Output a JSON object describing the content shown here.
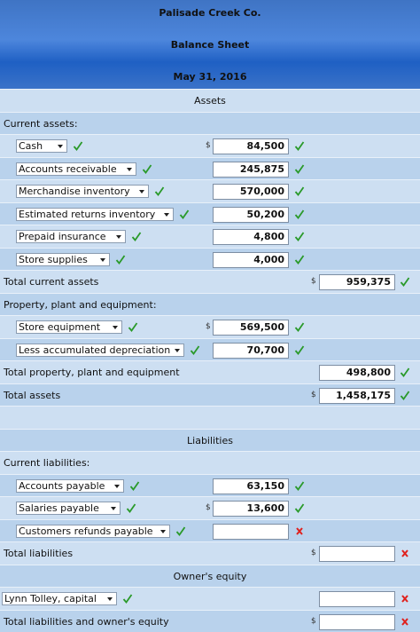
{
  "header": {
    "company": "Palisade Creek Co.",
    "title": "Balance Sheet",
    "date": "May 31, 2016"
  },
  "rows": [
    {
      "label": "Assets"
    },
    {
      "label": "Current assets:"
    },
    {
      "label": "Cash",
      "currency1": "$",
      "amount1": "84,500"
    },
    {
      "label": "Accounts receivable",
      "amount1": "245,875"
    },
    {
      "label": "Merchandise inventory",
      "amount1": "570,000"
    },
    {
      "label": "Estimated returns inventory",
      "amount1": "50,200"
    },
    {
      "label": "Prepaid insurance",
      "amount1": "4,800"
    },
    {
      "label": "Store supplies",
      "amount1": "4,000"
    },
    {
      "label": "Total current assets",
      "currency2": "$",
      "amount2": "959,375"
    },
    {
      "label": "Property, plant and equipment:"
    },
    {
      "label": "Store equipment",
      "currency1": "$",
      "amount1": "569,500"
    },
    {
      "label": "Less accumulated depreciation",
      "amount1": "70,700"
    },
    {
      "label": "Total property, plant and equipment",
      "amount2": "498,800"
    },
    {
      "label": "Total assets",
      "currency2": "$",
      "amount2": "1,458,175"
    },
    {},
    {
      "label": "Liabilities"
    },
    {
      "label": "Current liabilities:"
    },
    {
      "label": "Accounts payable",
      "amount1": "63,150"
    },
    {
      "label": "Salaries payable",
      "currency1": "$",
      "amount1": "13,600"
    },
    {
      "label": "Customers refunds payable"
    },
    {
      "label": "Total liabilities",
      "currency2": "$"
    },
    {
      "label": "Owner's equity"
    },
    {
      "label": "Lynn Tolley, capital"
    },
    {
      "label": "Total liabilities and owner's equity",
      "currency2": "$"
    }
  ]
}
